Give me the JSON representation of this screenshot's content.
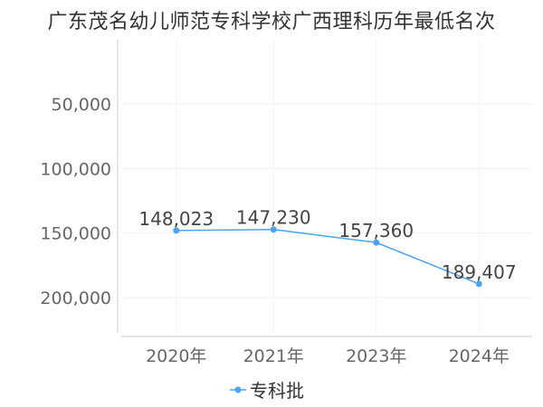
{
  "title": "广东茂名幼儿师范专科学校广西理科历年最低名次",
  "colors": {
    "series": "#4da3f0",
    "axis": "#cccccc",
    "grid": "#f2f2f2",
    "text": "#666666"
  },
  "chart_data": {
    "type": "line",
    "title": "广东茂名幼儿师范专科学校广西理科历年最低名次",
    "categories": [
      "2020年",
      "2021年",
      "2023年",
      "2024年"
    ],
    "series": [
      {
        "name": "专科批",
        "values": [
          148023,
          147230,
          157360,
          189407
        ],
        "labels": [
          "148,023",
          "147,230",
          "157,360",
          "189,407"
        ]
      }
    ],
    "y_ticks": [
      50000,
      100000,
      150000,
      200000
    ],
    "y_tick_labels": [
      "50,000",
      "100,000",
      "150,000",
      "200,000"
    ],
    "ylim": [
      0,
      225000
    ],
    "y_inverted": true,
    "grid": true,
    "legend_position": "bottom"
  }
}
